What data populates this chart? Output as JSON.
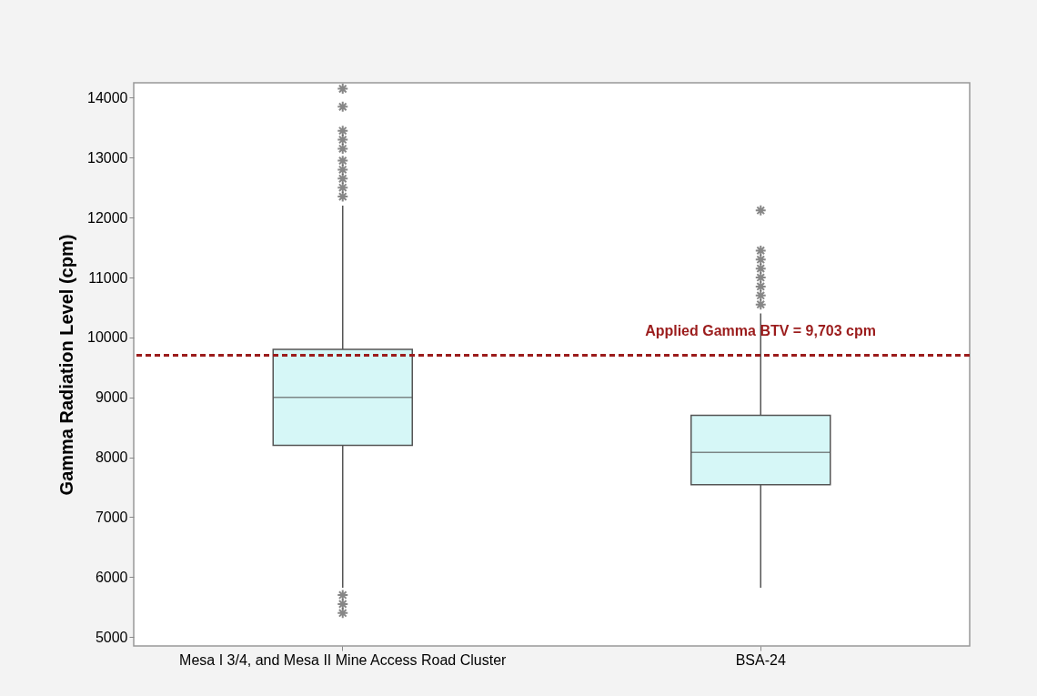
{
  "chart_data": {
    "type": "box",
    "ylabel": "Gamma Radiation Level (cpm)",
    "categories": [
      "Mesa I 3/4, and Mesa II Mine Access Road Cluster",
      "BSA-24"
    ],
    "boxes": [
      {
        "low": 5820,
        "q1": 8200,
        "median": 9000,
        "q3": 9800,
        "high": 12200,
        "outliers": [
          14150,
          13850,
          13450,
          13300,
          13150,
          12950,
          12800,
          12650,
          12500,
          12350,
          5700,
          5550,
          5400
        ]
      },
      {
        "low": 5820,
        "q1": 7540,
        "median": 8080,
        "q3": 8700,
        "high": 10400,
        "outliers": [
          12120,
          11450,
          11300,
          11150,
          11000,
          10850,
          10700,
          10550
        ]
      }
    ],
    "color": "#d6f7f7",
    "ylim": [
      4850,
      14250
    ],
    "yticks": [
      5000,
      6000,
      7000,
      8000,
      9000,
      10000,
      11000,
      12000,
      13000,
      14000
    ],
    "ref_lines": [
      {
        "axis": "y",
        "value": 9703,
        "label": "Applied Gamma BTV = 9,703 cpm",
        "color": "#9b1c1c",
        "line_style": "dashed"
      }
    ],
    "grid": false
  }
}
